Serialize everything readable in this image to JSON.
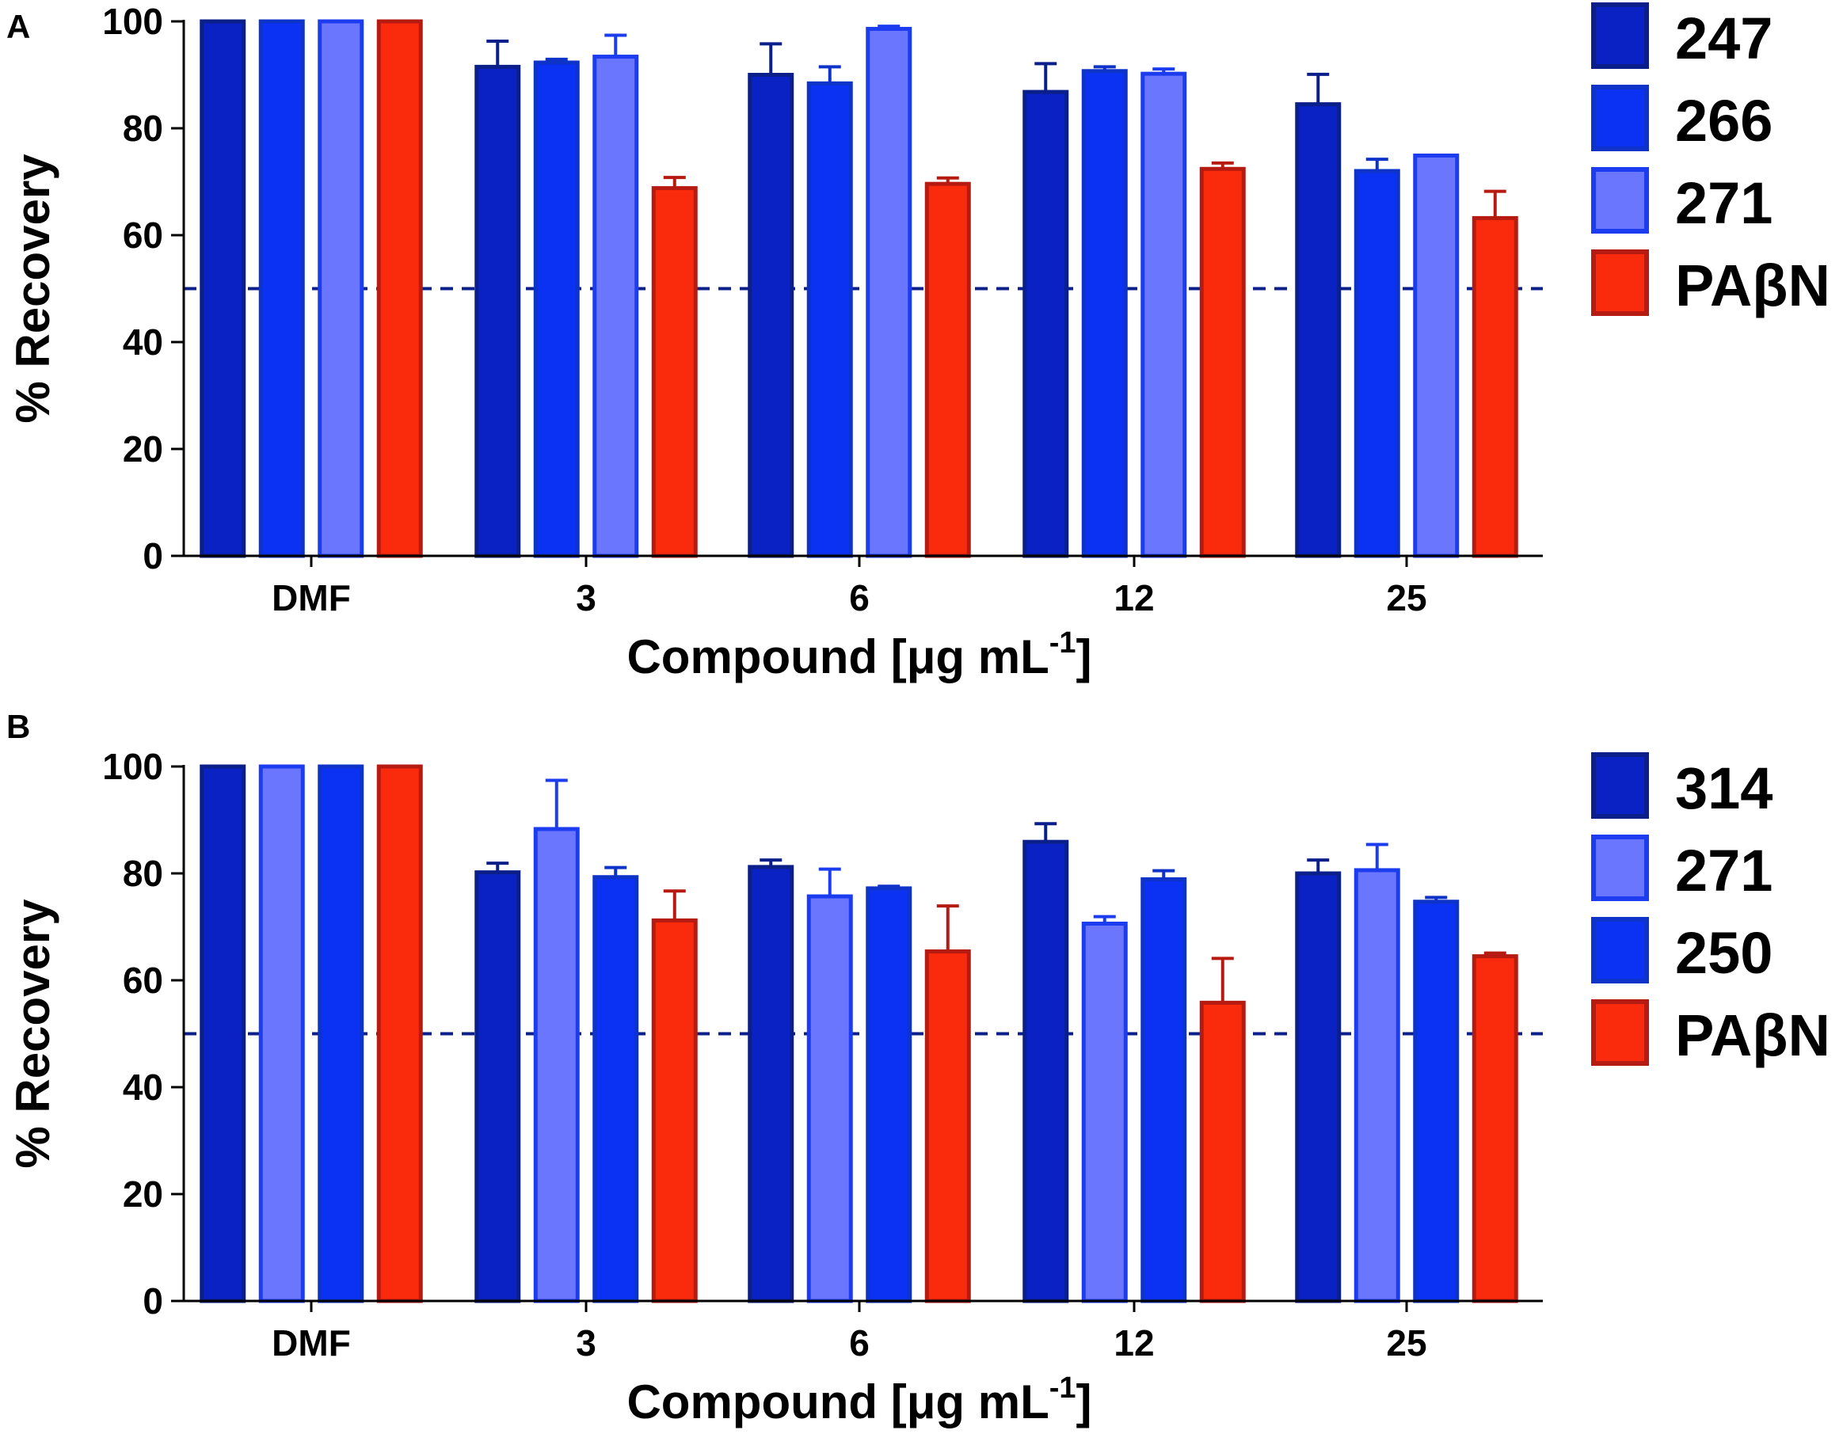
{
  "figure": {
    "bar_colors": {
      "dark_blue": "#0a22c4",
      "blue": "#0b32f2",
      "light_blue": "#6b76ff",
      "red": "#fa2a0c"
    },
    "edge_colors": {
      "dark_blue": "#0b1f8a",
      "blue": "#0e33c8",
      "light_blue": "#1c3cf0",
      "red": "#b61b12"
    },
    "reference_line_color": "#0b1f8a"
  },
  "chart_data": [
    {
      "panel": "A",
      "type": "bar",
      "xlabel_main": "Compound [",
      "xlabel_mu": "μ",
      "xlabel_unit": "g mL",
      "xlabel_sup": "-1",
      "xlabel_end": "]",
      "ylabel": "% Recovery",
      "ylim": [
        0,
        100
      ],
      "yticks": [
        "0",
        "20",
        "40",
        "60",
        "80",
        "100"
      ],
      "categories": [
        "DMF",
        "3",
        "6",
        "12",
        "25"
      ],
      "reference_line": 50,
      "series": [
        {
          "name": "247",
          "color_key": "dark_blue",
          "values": [
            100,
            91.5,
            90,
            86.8,
            84.5
          ],
          "errors": [
            0,
            4.8,
            5.8,
            5.3,
            5.6
          ]
        },
        {
          "name": "266",
          "color_key": "blue",
          "values": [
            100,
            92.3,
            88.4,
            90.7,
            72
          ],
          "errors": [
            0,
            0.6,
            3.1,
            0.8,
            2.2
          ]
        },
        {
          "name": "271",
          "color_key": "light_blue",
          "values": [
            100,
            93.4,
            98.6,
            90.2,
            74.9
          ],
          "errors": [
            0,
            4,
            0.5,
            0.9,
            0
          ]
        },
        {
          "name": "PAβN",
          "color_key": "red",
          "values": [
            100,
            68.8,
            69.6,
            72.4,
            63.2
          ],
          "errors": [
            0,
            2,
            1.1,
            1.1,
            5
          ]
        }
      ]
    },
    {
      "panel": "B",
      "type": "bar",
      "xlabel_main": "Compound [",
      "xlabel_mu": "μ",
      "xlabel_unit": "g mL",
      "xlabel_sup": "-1",
      "xlabel_end": "]",
      "ylabel": "% Recovery",
      "ylim": [
        0,
        100
      ],
      "yticks": [
        "0",
        "20",
        "40",
        "60",
        "80",
        "100"
      ],
      "categories": [
        "DMF",
        "3",
        "6",
        "12",
        "25"
      ],
      "reference_line": 50,
      "series": [
        {
          "name": "314",
          "color_key": "dark_blue",
          "values": [
            100,
            80.2,
            81.2,
            85.9,
            80
          ],
          "errors": [
            0,
            1.7,
            1.3,
            3.4,
            2.5
          ]
        },
        {
          "name": "271",
          "color_key": "light_blue",
          "values": [
            100,
            88.3,
            75.7,
            70.6,
            80.6
          ],
          "errors": [
            0,
            9.1,
            5.1,
            1.3,
            4.8
          ]
        },
        {
          "name": "250",
          "color_key": "blue",
          "values": [
            100,
            79.3,
            77.2,
            78.9,
            74.7
          ],
          "errors": [
            0,
            1.8,
            0.4,
            1.6,
            0.8
          ]
        },
        {
          "name": "PAβN",
          "color_key": "red",
          "values": [
            100,
            71.2,
            65.4,
            55.8,
            64.5
          ],
          "errors": [
            0,
            5.5,
            8.5,
            8.3,
            0.6
          ]
        }
      ]
    }
  ]
}
